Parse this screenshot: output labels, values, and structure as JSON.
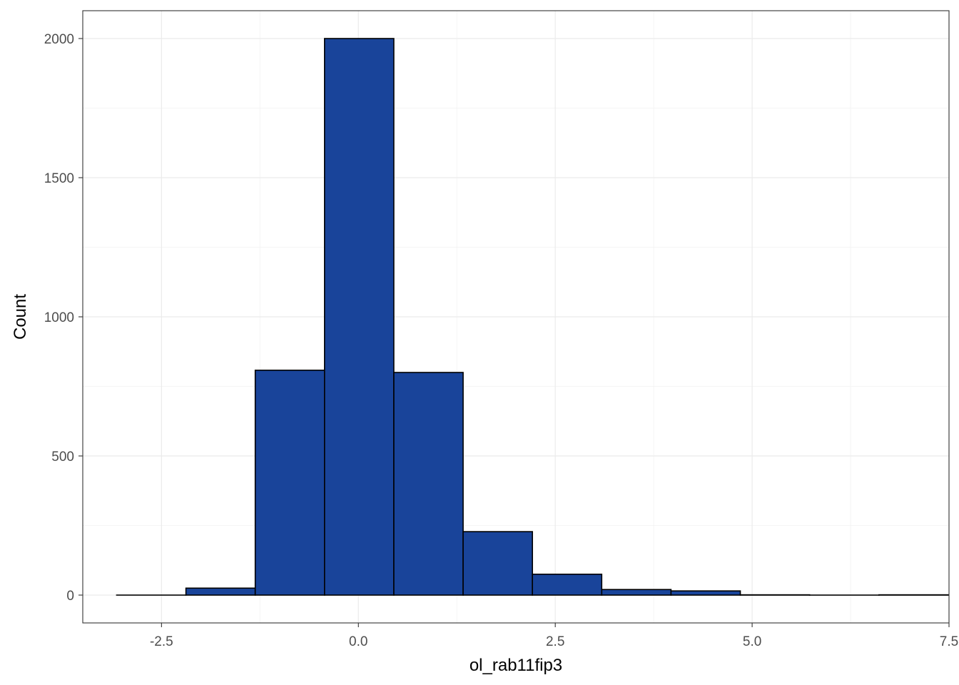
{
  "chart_data": {
    "type": "bar",
    "subtype": "histogram",
    "xlabel": "ol_rab11fip3",
    "ylabel": "Count",
    "xlim": [
      -3.5,
      7.5
    ],
    "ylim": [
      -100,
      2100
    ],
    "x_ticks": [
      -2.5,
      0.0,
      2.5,
      5.0,
      7.5
    ],
    "x_tick_labels": [
      "-2.5",
      "0.0",
      "2.5",
      "5.0",
      "7.5"
    ],
    "y_ticks": [
      0,
      500,
      1000,
      1500,
      2000
    ],
    "y_tick_labels": [
      "0",
      "500",
      "1000",
      "1500",
      "2000"
    ],
    "bins": [
      {
        "x0": -3.07,
        "x1": -2.19,
        "count": 0
      },
      {
        "x0": -2.19,
        "x1": -1.31,
        "count": 25
      },
      {
        "x0": -1.31,
        "x1": -0.43,
        "count": 808
      },
      {
        "x0": -0.43,
        "x1": 0.45,
        "count": 2000
      },
      {
        "x0": 0.45,
        "x1": 1.33,
        "count": 800
      },
      {
        "x0": 1.33,
        "x1": 2.21,
        "count": 228
      },
      {
        "x0": 2.21,
        "x1": 3.09,
        "count": 75
      },
      {
        "x0": 3.09,
        "x1": 3.97,
        "count": 20
      },
      {
        "x0": 3.97,
        "x1": 4.85,
        "count": 15
      },
      {
        "x0": 4.85,
        "x1": 5.73,
        "count": 1
      },
      {
        "x0": 5.73,
        "x1": 6.61,
        "count": 0
      },
      {
        "x0": 6.61,
        "x1": 7.49,
        "count": 1
      }
    ],
    "fill_color": "#19449A",
    "edge_color": "#000000",
    "grid": true,
    "theme": "bw"
  }
}
